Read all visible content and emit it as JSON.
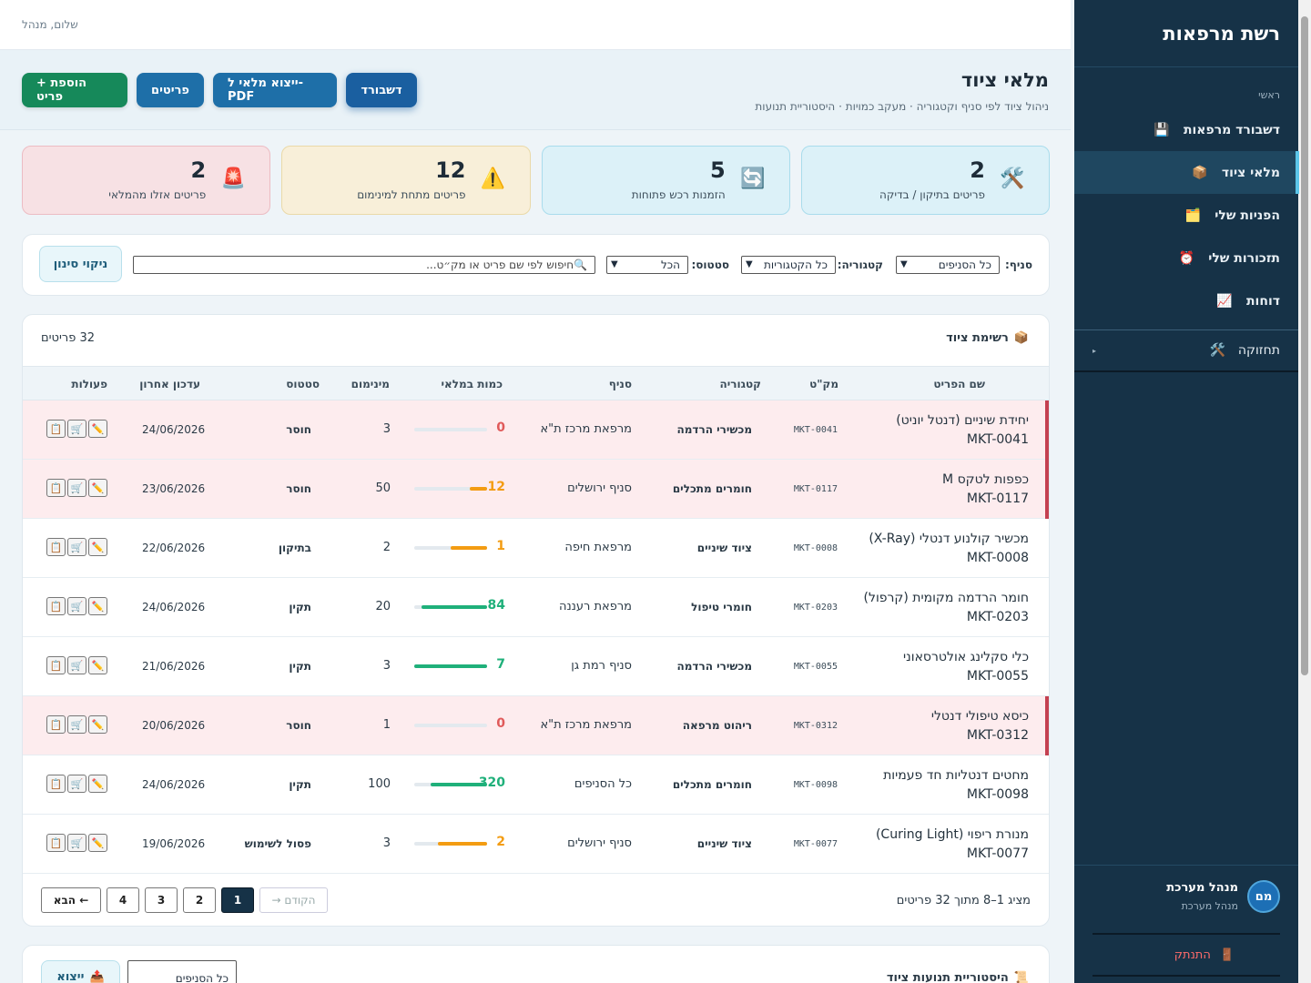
{
  "sidebar": {
    "brand": "רשת מרפאות",
    "section": "ראשי",
    "items": [
      {
        "label": "דשבורד מרפאות",
        "icon": "💾"
      },
      {
        "label": "מלאי ציוד",
        "icon": "📦"
      },
      {
        "label": "הפניות שלי",
        "icon": "🗂️"
      },
      {
        "label": "תזכורות שלי",
        "icon": "⏰"
      },
      {
        "label": "דוחות",
        "icon": "📈"
      }
    ],
    "maintenance": {
      "label": "תחזוקה",
      "icon": "🛠️",
      "caret": "▸"
    },
    "user": {
      "initials": "מם",
      "name": "מנהל מערכת",
      "role": "מנהל מערכת"
    },
    "logout": {
      "label": "התנתק",
      "icon": "🚪"
    }
  },
  "topbar": {
    "greeting": "שלום, מנהל"
  },
  "page": {
    "title": "מלאי ציוד",
    "subtitle": "ניהול ציוד לפי סניף וקטגוריה · מעקב כמויות · היסטוריית תנועות",
    "buttons": {
      "dashboard": "דשבורד",
      "export_pdf": "ייצוא מלאי ל-PDF",
      "items": "פריטים",
      "add_item": "+ הוספת פריט"
    }
  },
  "stats": [
    {
      "value": "2",
      "label": "פריטים אזלו מהמלאי",
      "icon": "🚨",
      "tone": "red"
    },
    {
      "value": "12",
      "label": "פריטים מתחת למינימום",
      "icon": "⚠️",
      "tone": "yellow"
    },
    {
      "value": "5",
      "label": "הזמנות רכש פתוחות",
      "icon": "🔄",
      "tone": "cyan"
    },
    {
      "value": "2",
      "label": "פריטים בתיקון / בדיקה",
      "icon": "🛠️",
      "tone": "cyan"
    }
  ],
  "filters": {
    "branch_label": "סניף:",
    "branch_value": "כל הסניפים",
    "category_label": "קטגוריה:",
    "category_value": "כל הקטגוריות",
    "status_label": "סטטוס:",
    "status_value": "הכל",
    "search_placeholder": "חיפוש לפי שם פריט או מק״ט...",
    "search_icon": "🔍",
    "clear_label": "ניקוי סינון"
  },
  "list": {
    "title": "רשימת ציוד",
    "title_icon": "📦",
    "count": "32 פריטים",
    "columns": {
      "name": "שם הפריט",
      "sku": "מק\"ט",
      "category": "קטגוריה",
      "branch": "סניף",
      "qty": "כמות במלאי",
      "min": "מינימום",
      "status": "סטטוס",
      "updated": "עדכון אחרון",
      "actions": "פעולות"
    },
    "rows": [
      {
        "name": "יחידת שיניים (דנטל יוניט)",
        "code": "MKT-0041",
        "sku": "MKT-0041",
        "category": "מכשירי הרדמה",
        "branch": "מרפאת מרכז ת\"א",
        "qty": 0,
        "fill": 0,
        "color": "#e05a5a",
        "min": "3",
        "status": "חוסר",
        "date": "24/06/2026",
        "alert": true
      },
      {
        "name": "כפפות לטקס M",
        "code": "MKT-0117",
        "sku": "MKT-0117",
        "category": "חומרים מתכלים",
        "branch": "סניף ירושלים",
        "qty": 12,
        "fill": 0.24,
        "color": "#f39c12",
        "min": "50",
        "status": "חוסר",
        "date": "23/06/2026",
        "alert": true
      },
      {
        "name": "מכשיר קולנוע דנטלי (X-Ray)",
        "code": "MKT-0008",
        "sku": "MKT-0008",
        "category": "ציוד שיניים",
        "branch": "מרפאת חיפה",
        "qty": 1,
        "fill": 0.5,
        "color": "#f39c12",
        "min": "2",
        "status": "בתיקון",
        "date": "22/06/2026",
        "alert": false
      },
      {
        "name": "חומר הרדמה מקומית (קרפול)",
        "code": "MKT-0203",
        "sku": "MKT-0203",
        "category": "חומרי טיפול",
        "branch": "מרפאת רעננה",
        "qty": 84,
        "fill": 0.9,
        "color": "#1fb07a",
        "min": "20",
        "status": "תקין",
        "date": "24/06/2026",
        "alert": false
      },
      {
        "name": "כלי סקלינג אולטרסאוני",
        "code": "MKT-0055",
        "sku": "MKT-0055",
        "category": "מכשירי הרדמה",
        "branch": "סניף רמת גן",
        "qty": 7,
        "fill": 1,
        "color": "#1fb07a",
        "min": "3",
        "status": "תקין",
        "date": "21/06/2026",
        "alert": false
      },
      {
        "name": "כיסא טיפולי דנטלי",
        "code": "MKT-0312",
        "sku": "MKT-0312",
        "category": "ריהוט מרפאה",
        "branch": "מרפאת מרכז ת\"א",
        "qty": 0,
        "fill": 0,
        "color": "#e05a5a",
        "min": "1",
        "status": "חוסר",
        "date": "20/06/2026",
        "alert": true
      },
      {
        "name": "מחטים דנטליות חד פעמיות",
        "code": "MKT-0098",
        "sku": "MKT-0098",
        "category": "חומרים מתכלים",
        "branch": "כל הסניפים",
        "qty": 320,
        "fill": 0.78,
        "color": "#1fb07a",
        "min": "100",
        "status": "תקין",
        "date": "24/06/2026",
        "alert": false
      },
      {
        "name": "מנורת ריפוי (Curing Light)",
        "code": "MKT-0077",
        "sku": "MKT-0077",
        "category": "ציוד שיניים",
        "branch": "סניף ירושלים",
        "qty": 2,
        "fill": 0.67,
        "color": "#f39c12",
        "min": "3",
        "status": "פסול לשימוש",
        "date": "19/06/2026",
        "alert": false
      }
    ],
    "actions": {
      "edit": "✏️",
      "order": "🛒",
      "history": "📋"
    }
  },
  "pagination": {
    "info": "מציג 1–8 מתוך 32 פריטים",
    "prev": "→ הקודם",
    "pages": [
      "1",
      "2",
      "3",
      "4"
    ],
    "next": "הבא ←"
  },
  "history": {
    "title": "היסטוריית תנועות ציוד",
    "title_icon": "📜",
    "select_value": "כל הסניפים",
    "export_label": "ייצוא",
    "export_icon": "📤"
  }
}
